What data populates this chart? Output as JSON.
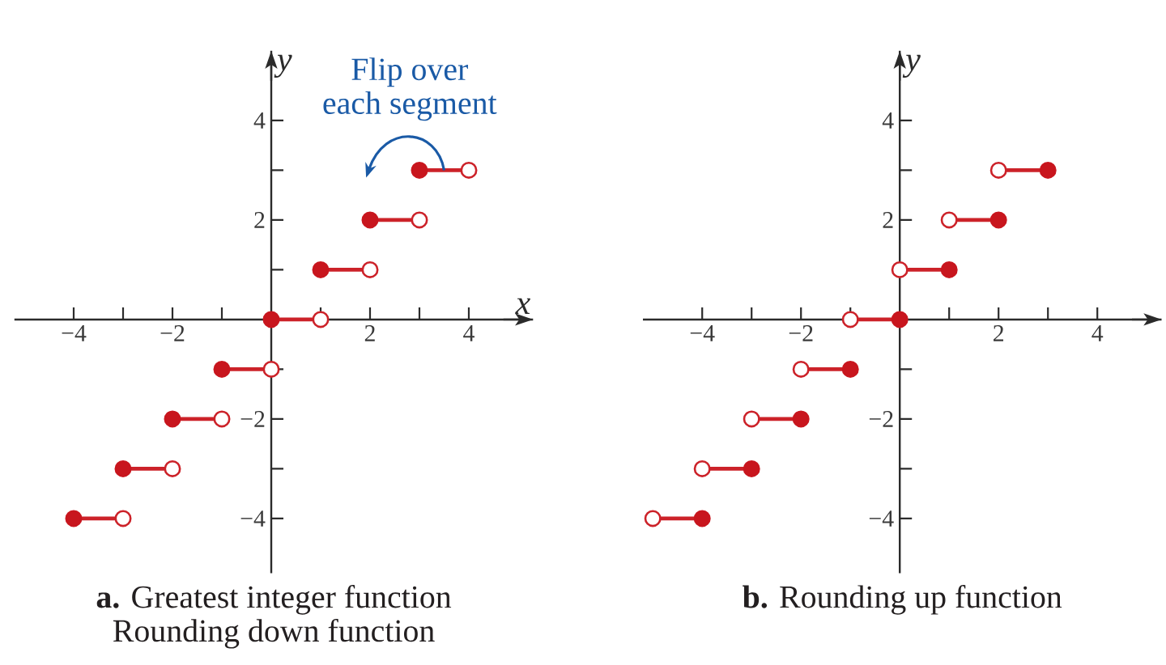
{
  "chart_data": [
    {
      "type": "line",
      "title": "**a.** Greatest integer function",
      "subtitle": "Rounding down function",
      "xlabel": "x",
      "ylabel": "y",
      "series": [
        {
          "color": "#cc2229",
          "x": [
            -4,
            -3
          ],
          "values": [
            -4,
            -4
          ]
        },
        {
          "color": "#cc2229",
          "x": [
            -3,
            -2
          ],
          "values": [
            -3,
            -3
          ]
        },
        {
          "color": "#cc2229",
          "x": [
            -2,
            -1
          ],
          "values": [
            -2,
            -2
          ]
        },
        {
          "color": "#cc2229",
          "x": [
            -1,
            0
          ],
          "values": [
            -1,
            -1
          ]
        },
        {
          "color": "#cc2229",
          "x": [
            0,
            1
          ],
          "values": [
            0,
            0
          ]
        },
        {
          "color": "#cc2229",
          "x": [
            1,
            2
          ],
          "values": [
            1,
            1
          ]
        },
        {
          "color": "#cc2229",
          "x": [
            2,
            3
          ],
          "values": [
            2,
            2
          ]
        },
        {
          "color": "#cc2229",
          "x": [
            3,
            4
          ],
          "values": [
            3,
            3
          ]
        },
        {
          "type": "scatter",
          "color": "#c8161e",
          "marker": "circle",
          "x": [
            -4,
            -3,
            -2,
            -1,
            0,
            1,
            2,
            3
          ],
          "values": [
            -4,
            -3,
            -2,
            -1,
            0,
            1,
            2,
            3
          ]
        },
        {
          "type": "scatter",
          "color": "#cc2229",
          "marker": "circle-open",
          "x": [
            -3,
            -2,
            -1,
            0,
            1,
            2,
            3,
            4
          ],
          "values": [
            -4,
            -3,
            -2,
            -1,
            0,
            1,
            2,
            3
          ]
        }
      ],
      "xlim": [
        -5.2,
        5.3
      ],
      "ylim": [
        -5.1,
        5.4
      ],
      "xticks": [
        {
          "value": -4,
          "label": "−4"
        },
        {
          "value": -3,
          "label": null
        },
        {
          "value": -2,
          "label": "−2"
        },
        {
          "value": -1,
          "label": null
        },
        {
          "value": 1,
          "label": null
        },
        2,
        {
          "value": 3,
          "label": null
        },
        4
      ],
      "yticks": [
        {
          "value": -4,
          "label": "−4"
        },
        {
          "value": -3,
          "label": null
        },
        {
          "value": -2,
          "label": "−2"
        },
        {
          "value": -1,
          "label": null
        },
        {
          "value": 1,
          "label": null
        },
        2,
        {
          "value": 3,
          "label": null
        },
        4
      ],
      "annotations": [
        {
          "text": "Flip over each segment",
          "x": 3.5,
          "y": 3
        }
      ]
    },
    {
      "type": "line",
      "title": "**b.** Rounding up function",
      "ylabel": "y",
      "series": [
        {
          "color": "#cc2229",
          "x": [
            -5,
            -4
          ],
          "values": [
            -4,
            -4
          ]
        },
        {
          "color": "#cc2229",
          "x": [
            -4,
            -3
          ],
          "values": [
            -3,
            -3
          ]
        },
        {
          "color": "#cc2229",
          "x": [
            -3,
            -2
          ],
          "values": [
            -2,
            -2
          ]
        },
        {
          "color": "#cc2229",
          "x": [
            -2,
            -1
          ],
          "values": [
            -1,
            -1
          ]
        },
        {
          "color": "#cc2229",
          "x": [
            -1,
            0
          ],
          "values": [
            0,
            0
          ]
        },
        {
          "color": "#cc2229",
          "x": [
            0,
            1
          ],
          "values": [
            1,
            1
          ]
        },
        {
          "color": "#cc2229",
          "x": [
            1,
            2
          ],
          "values": [
            2,
            2
          ]
        },
        {
          "color": "#cc2229",
          "x": [
            2,
            3
          ],
          "values": [
            3,
            3
          ]
        },
        {
          "type": "scatter",
          "color": "#cc2229",
          "marker": "circle-open",
          "x": [
            -5,
            -4,
            -3,
            -2,
            -1,
            0,
            1,
            2
          ],
          "values": [
            -4,
            -3,
            -2,
            -1,
            0,
            1,
            2,
            3
          ]
        },
        {
          "type": "scatter",
          "color": "#c8161e",
          "marker": "circle",
          "x": [
            -4,
            -3,
            -2,
            -1,
            0,
            1,
            2,
            3
          ],
          "values": [
            -4,
            -3,
            -2,
            -1,
            0,
            1,
            2,
            3
          ]
        }
      ],
      "xlim": [
        -5.2,
        5.3
      ],
      "ylim": [
        -5.1,
        5.4
      ],
      "xticks": [
        {
          "value": -4,
          "label": "−4"
        },
        {
          "value": -3,
          "label": null
        },
        {
          "value": -2,
          "label": "−2"
        },
        {
          "value": -1,
          "label": null
        },
        {
          "value": 1,
          "label": null
        },
        2,
        {
          "value": 3,
          "label": null
        },
        4
      ],
      "yticks": [
        {
          "value": -4,
          "label": "−4"
        },
        {
          "value": -3,
          "label": null
        },
        {
          "value": -2,
          "label": "−2"
        },
        {
          "value": -1,
          "label": null
        },
        {
          "value": 1,
          "label": null
        },
        2,
        {
          "value": 3,
          "label": null
        },
        4
      ]
    }
  ]
}
